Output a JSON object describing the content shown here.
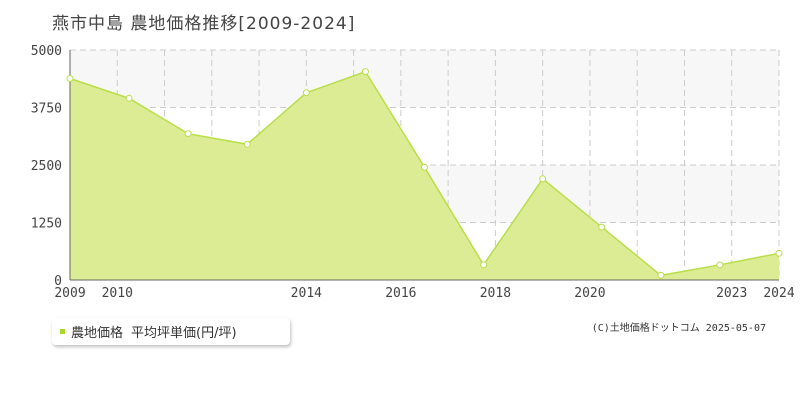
{
  "title": "燕市中島 農地価格推移[2009-2024]",
  "legend": {
    "label": "農地価格",
    "sublabel": "平均坪単価(円/坪)"
  },
  "copyright": "(C)土地価格ドットコム 2025-05-07",
  "colors": {
    "fill": "#dcec94",
    "line": "#b9de4a",
    "marker": "#ffffff",
    "grid": "#cccccc",
    "band": "#f7f7f7"
  },
  "chart_data": {
    "type": "area",
    "series": [
      {
        "name": "農地価格",
        "x": [
          2009,
          2010,
          2011,
          2012,
          2013,
          2014,
          2015,
          2016,
          2017,
          2018,
          2019,
          2020,
          2021,
          2022,
          2023,
          2024
        ],
        "values": [
          4380,
          3950,
          3180,
          2950,
          4070,
          4530,
          2450,
          330,
          2200,
          1150,
          100,
          330,
          580,
          null,
          null,
          null
        ]
      }
    ],
    "x_ticks": [
      2009,
      2010,
      2014,
      2016,
      2018,
      2020,
      2023,
      2024
    ],
    "y_ticks": [
      0,
      1250,
      2500,
      3750,
      5000
    ],
    "xlim": [
      2009,
      2024
    ],
    "ylim": [
      0,
      5000
    ],
    "grid": true
  }
}
